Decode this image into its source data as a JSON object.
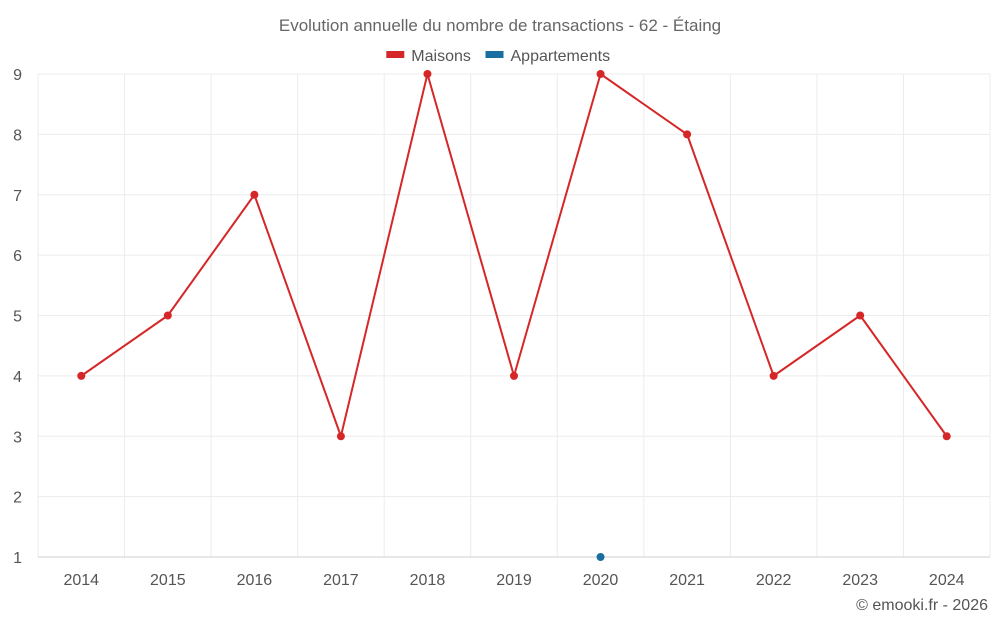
{
  "chart_data": {
    "type": "line",
    "title": "Evolution annuelle du nombre de transactions - 62 - Étaing",
    "categories": [
      "2014",
      "2015",
      "2016",
      "2017",
      "2018",
      "2019",
      "2020",
      "2021",
      "2022",
      "2023",
      "2024"
    ],
    "series": [
      {
        "name": "Maisons",
        "color": "#d62728",
        "values": [
          4,
          5,
          7,
          3,
          9,
          4,
          9,
          8,
          4,
          5,
          3
        ]
      },
      {
        "name": "Appartements",
        "color": "#1a6ea1",
        "values": [
          null,
          null,
          null,
          null,
          null,
          null,
          1,
          null,
          null,
          null,
          null
        ]
      }
    ],
    "ylim": [
      1,
      9
    ],
    "yticks": [
      1,
      2,
      3,
      4,
      5,
      6,
      7,
      8,
      9
    ],
    "grid": true,
    "legend": "top-center"
  },
  "credit": "© emooki.fr - 2026"
}
